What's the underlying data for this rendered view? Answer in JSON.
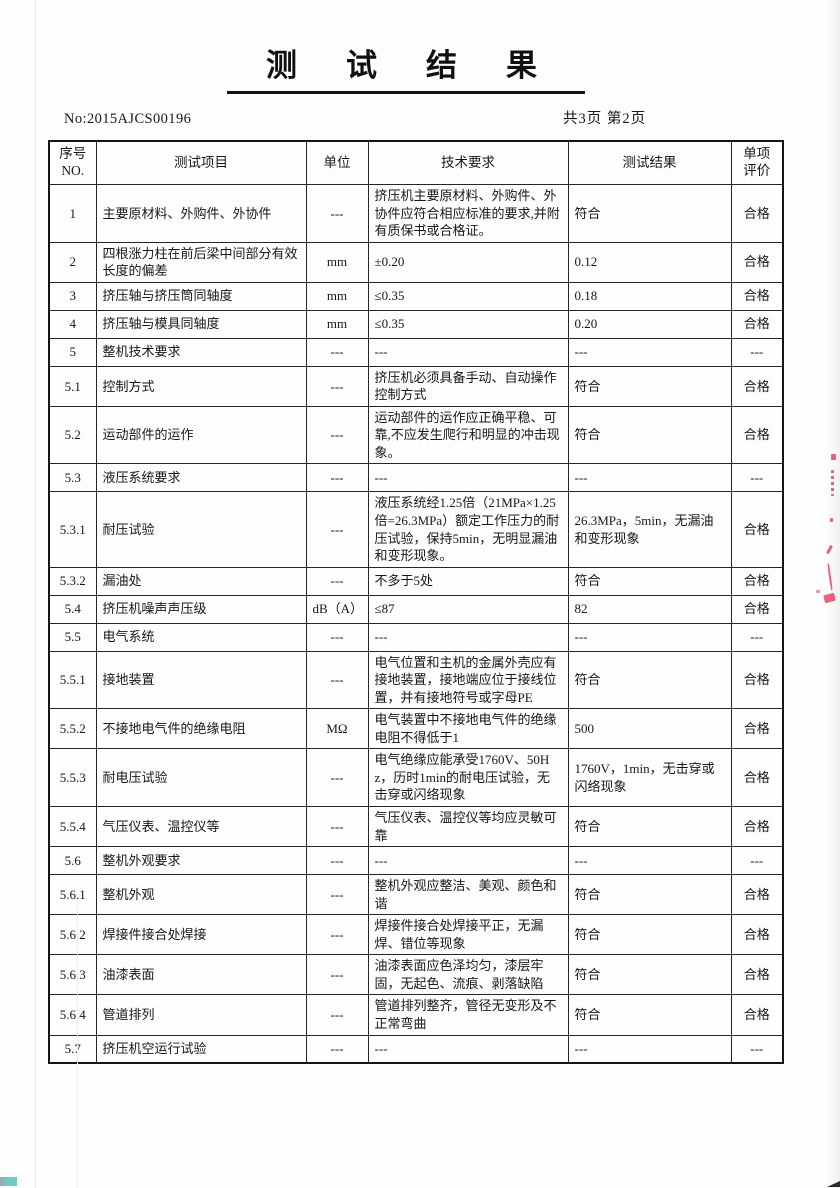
{
  "page": {
    "title": "测　试　结　果",
    "doc_no": "No:2015AJCS00196",
    "page_info": "共3页 第2页"
  },
  "table": {
    "headers": {
      "no_line1": "序号",
      "no_line2": "NO.",
      "item": "测试项目",
      "unit": "单位",
      "requirement": "技术要求",
      "result": "测试结果",
      "evaluation_line1": "单项",
      "evaluation_line2": "评价"
    },
    "rows": [
      {
        "no": "1",
        "item": "主要原材料、外购件、外协件",
        "unit": "---",
        "requirement": "挤压机主要原材料、外购件、外协件应符合相应标准的要求,并附有质保书或合格证。",
        "result": "符合",
        "evaluation": "合格"
      },
      {
        "no": "2",
        "item": "四根涨力柱在前后梁中间部分有效长度的偏差",
        "unit": "mm",
        "requirement": "±0.20",
        "result": "0.12",
        "evaluation": "合格"
      },
      {
        "no": "3",
        "item": "挤压轴与挤压筒同轴度",
        "unit": "mm",
        "requirement": "≤0.35",
        "result": "0.18",
        "evaluation": "合格"
      },
      {
        "no": "4",
        "item": "挤压轴与模具同轴度",
        "unit": "mm",
        "requirement": "≤0.35",
        "result": "0.20",
        "evaluation": "合格"
      },
      {
        "no": "5",
        "item": "整机技术要求",
        "unit": "---",
        "requirement": "---",
        "result": "---",
        "evaluation": "---"
      },
      {
        "no": "5.1",
        "item": "控制方式",
        "unit": "---",
        "requirement": "挤压机必须具备手动、自动操作控制方式",
        "result": "符合",
        "evaluation": "合格"
      },
      {
        "no": "5.2",
        "item": "运动部件的运作",
        "unit": "---",
        "requirement": "运动部件的运作应正确平稳、可靠,不应发生爬行和明显的冲击现象。",
        "result": "符合",
        "evaluation": "合格"
      },
      {
        "no": "5.3",
        "item": "液压系统要求",
        "unit": "---",
        "requirement": "---",
        "result": "---",
        "evaluation": "---"
      },
      {
        "no": "5.3.1",
        "item": "耐压试验",
        "unit": "---",
        "requirement": "液压系统经1.25倍（21MPa×1.25倍=26.3MPa）额定工作压力的耐压试验，保持5min，无明显漏油和变形现象。",
        "result": "26.3MPa，5min，无漏油和变形现象",
        "evaluation": "合格"
      },
      {
        "no": "5.3.2",
        "item": "漏油处",
        "unit": "---",
        "requirement": "不多于5处",
        "result": "符合",
        "evaluation": "合格"
      },
      {
        "no": "5.4",
        "item": "挤压机噪声声压级",
        "unit": "dB（A）",
        "requirement": "≤87",
        "result": "82",
        "evaluation": "合格"
      },
      {
        "no": "5.5",
        "item": "电气系统",
        "unit": "---",
        "requirement": "---",
        "result": "---",
        "evaluation": "---"
      },
      {
        "no": "5.5.1",
        "item": "接地装置",
        "unit": "---",
        "requirement": "电气位置和主机的金属外壳应有接地装置，接地端应位于接线位置，并有接地符号或字母PE",
        "result": "符合",
        "evaluation": "合格"
      },
      {
        "no": "5.5.2",
        "item": "不接地电气件的绝缘电阻",
        "unit": "MΩ",
        "requirement": "电气装置中不接地电气件的绝缘电阻不得低于1",
        "result": "500",
        "evaluation": "合格"
      },
      {
        "no": "5.5.3",
        "item": "耐电压试验",
        "unit": "---",
        "requirement": "电气绝缘应能承受1760V、50Hz，历时1min的耐电压试验，无击穿或闪络现象",
        "result": "1760V，1min，无击穿或闪络现象",
        "evaluation": "合格"
      },
      {
        "no": "5.5.4",
        "item": "气压仪表、温控仪等",
        "unit": "---",
        "requirement": "气压仪表、温控仪等均应灵敏可靠",
        "result": "符合",
        "evaluation": "合格"
      },
      {
        "no": "5.6",
        "item": "整机外观要求",
        "unit": "---",
        "requirement": "---",
        "result": "---",
        "evaluation": "---"
      },
      {
        "no": "5.6.1",
        "item": "整机外观",
        "unit": "---",
        "requirement": "整机外观应整洁、美观、颜色和谐",
        "result": "符合",
        "evaluation": "合格"
      },
      {
        "no": "5.6.2",
        "item": "焊接件接合处焊接",
        "unit": "---",
        "requirement": "焊接件接合处焊接平正，无漏焊、错位等现象",
        "result": "符合",
        "evaluation": "合格"
      },
      {
        "no": "5.6.3",
        "item": "油漆表面",
        "unit": "---",
        "requirement": "油漆表面应色泽均匀，漆层牢固，无起色、流痕、剥落缺陷",
        "result": "符合",
        "evaluation": "合格"
      },
      {
        "no": "5.6.4",
        "item": "管道排列",
        "unit": "---",
        "requirement": "管道排列整齐，管径无变形及不正常弯曲",
        "result": "符合",
        "evaluation": "合格"
      },
      {
        "no": "5.7",
        "item": "挤压机空运行试验",
        "unit": "---",
        "requirement": "---",
        "result": "---",
        "evaluation": "---"
      }
    ]
  },
  "artifacts": {
    "red_ink_color": "#e0486a",
    "teal_mark_color": "#6fccc5"
  }
}
